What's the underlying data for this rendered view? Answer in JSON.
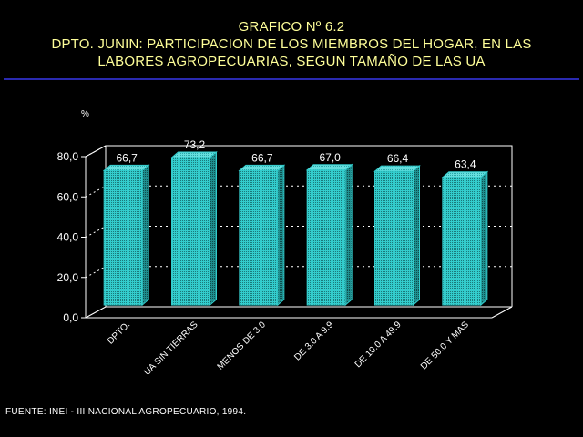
{
  "title_lines": [
    "GRAFICO Nº 6.2",
    "DPTO. JUNIN: PARTICIPACION DE LOS MIEMBROS DEL HOGAR, EN LAS",
    "LABORES AGROPECUARIAS, SEGUN TAMAÑO DE LAS UA"
  ],
  "source": "FUENTE: INEI - III NACIONAL AGROPECUARIO, 1994.",
  "colors": {
    "title": "#ffff99",
    "bar": "#33cccc",
    "axis": "#ffffff",
    "rule": "#2a2ab0"
  },
  "chart_data": {
    "type": "bar",
    "unit_label": "%",
    "categories": [
      "DPTO.",
      "UA SIN TIERRAS",
      "MENOS DE 3.0",
      "DE 3.0 A 9.9",
      "DE 10.0 A 49.9",
      "DE 50.0 Y MAS"
    ],
    "values": [
      66.7,
      73.2,
      66.7,
      67.0,
      66.4,
      63.4
    ],
    "value_labels": [
      "66,7",
      "73,2",
      "66,7",
      "67,0",
      "66,4",
      "63,4"
    ],
    "y_ticks": [
      {
        "value": 0,
        "label": "0,0"
      },
      {
        "value": 20,
        "label": "20,0"
      },
      {
        "value": 40,
        "label": "40,0"
      },
      {
        "value": 60,
        "label": "60,0"
      },
      {
        "value": 80,
        "label": "80,0"
      }
    ],
    "ylim": [
      0,
      80
    ],
    "grid": true,
    "bar_style": "3d"
  }
}
